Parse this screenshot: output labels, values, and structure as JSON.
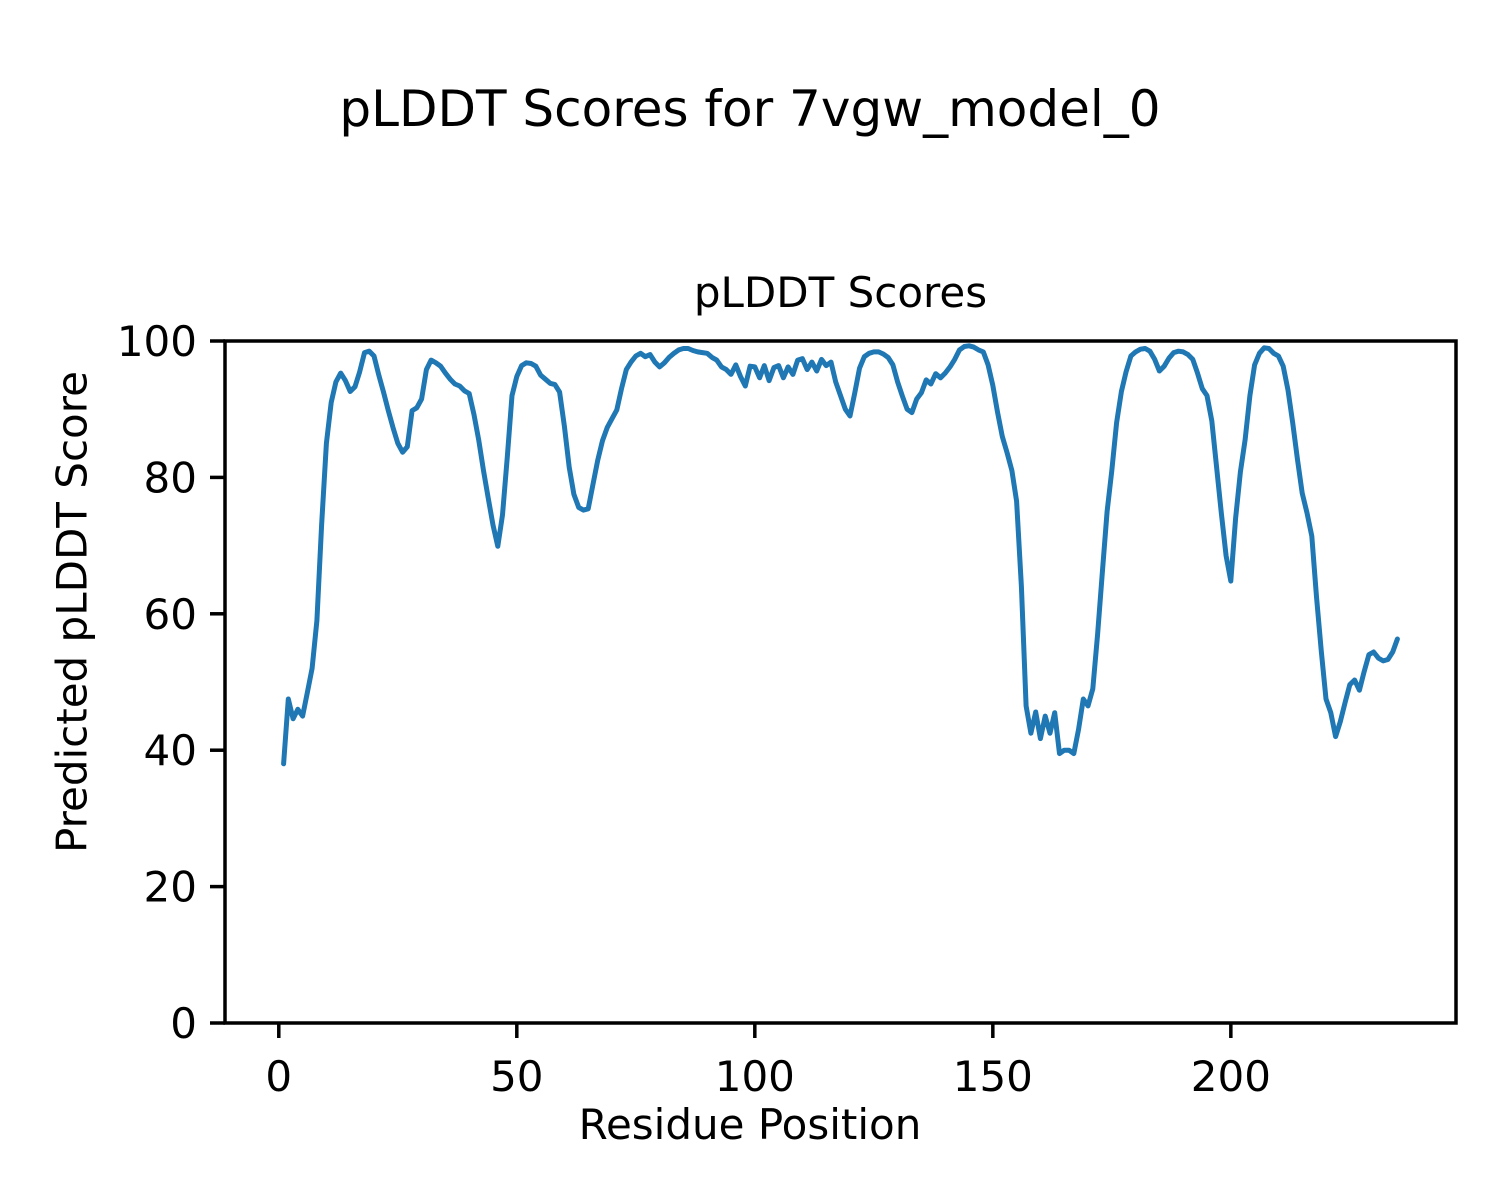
{
  "chart_data": {
    "type": "line",
    "suptitle": "pLDDT Scores for 7vgw_model_0",
    "title": "pLDDT Scores",
    "xlabel": "Residue Position",
    "ylabel": "Predicted pLDDT Score",
    "x_start": 1,
    "xlim": [
      -11.3,
      247.3
    ],
    "ylim": [
      0,
      100
    ],
    "xticks": [
      0,
      50,
      100,
      150,
      200
    ],
    "yticks": [
      0,
      20,
      40,
      60,
      80,
      100
    ],
    "grid": false,
    "line_color": "#1f77b4",
    "line_width": 5,
    "values": [
      38.0,
      47.5,
      44.6,
      46.0,
      45.0,
      48.5,
      52.0,
      59.0,
      73.0,
      85.0,
      91.0,
      94.0,
      95.3,
      94.2,
      92.6,
      93.3,
      95.5,
      98.3,
      98.5,
      97.8,
      95.0,
      92.5,
      89.8,
      87.3,
      85.0,
      83.7,
      84.5,
      89.8,
      90.2,
      91.5,
      95.8,
      97.2,
      96.8,
      96.3,
      95.3,
      94.4,
      93.7,
      93.4,
      92.7,
      92.3,
      89.2,
      85.5,
      81.0,
      77.0,
      73.0,
      69.9,
      74.5,
      83.0,
      92.0,
      94.8,
      96.4,
      96.8,
      96.7,
      96.3,
      95.0,
      94.4,
      93.8,
      93.6,
      92.5,
      87.5,
      81.5,
      77.5,
      75.6,
      75.2,
      75.4,
      79.0,
      82.5,
      85.4,
      87.3,
      88.6,
      89.9,
      93.0,
      95.8,
      96.9,
      97.8,
      98.2,
      97.7,
      98.0,
      96.9,
      96.2,
      96.8,
      97.6,
      98.2,
      98.7,
      98.9,
      98.9,
      98.6,
      98.4,
      98.3,
      98.2,
      97.6,
      97.2,
      96.2,
      95.8,
      95.1,
      96.5,
      94.8,
      93.4,
      96.3,
      96.2,
      94.6,
      96.4,
      94.2,
      96.1,
      96.4,
      94.6,
      96.2,
      95.1,
      97.2,
      97.4,
      95.8,
      96.9,
      95.6,
      97.3,
      96.4,
      96.9,
      94.0,
      92.0,
      90.0,
      89.0,
      92.4,
      96.0,
      97.7,
      98.2,
      98.4,
      98.4,
      98.1,
      97.6,
      96.5,
      94.0,
      91.9,
      90.0,
      89.5,
      91.5,
      92.4,
      94.3,
      93.7,
      95.2,
      94.6,
      95.3,
      96.2,
      97.3,
      98.7,
      99.2,
      99.3,
      99.1,
      98.7,
      98.4,
      96.5,
      93.5,
      89.5,
      86.0,
      83.6,
      81.0,
      76.5,
      64.0,
      46.5,
      42.5,
      45.6,
      41.7,
      45.0,
      42.5,
      45.5,
      39.5,
      40.0,
      40.0,
      39.5,
      43.0,
      47.5,
      46.5,
      49.0,
      57.0,
      66.0,
      75.0,
      81.0,
      88.0,
      92.6,
      95.5,
      97.8,
      98.4,
      98.8,
      98.9,
      98.5,
      97.3,
      95.6,
      96.3,
      97.5,
      98.3,
      98.5,
      98.4,
      98.0,
      97.3,
      95.3,
      93.0,
      92.0,
      88.3,
      81.5,
      74.8,
      68.5,
      64.8,
      74.0,
      80.8,
      85.5,
      92.0,
      96.5,
      98.2,
      99.0,
      98.9,
      98.2,
      97.8,
      96.3,
      92.8,
      88.0,
      82.6,
      77.7,
      74.8,
      71.4,
      62.5,
      54.5,
      47.5,
      45.5,
      42.0,
      44.2,
      47.0,
      49.6,
      50.3,
      48.8,
      51.5,
      54.0,
      54.4,
      53.5,
      53.1,
      53.3,
      54.4,
      56.3
    ]
  }
}
